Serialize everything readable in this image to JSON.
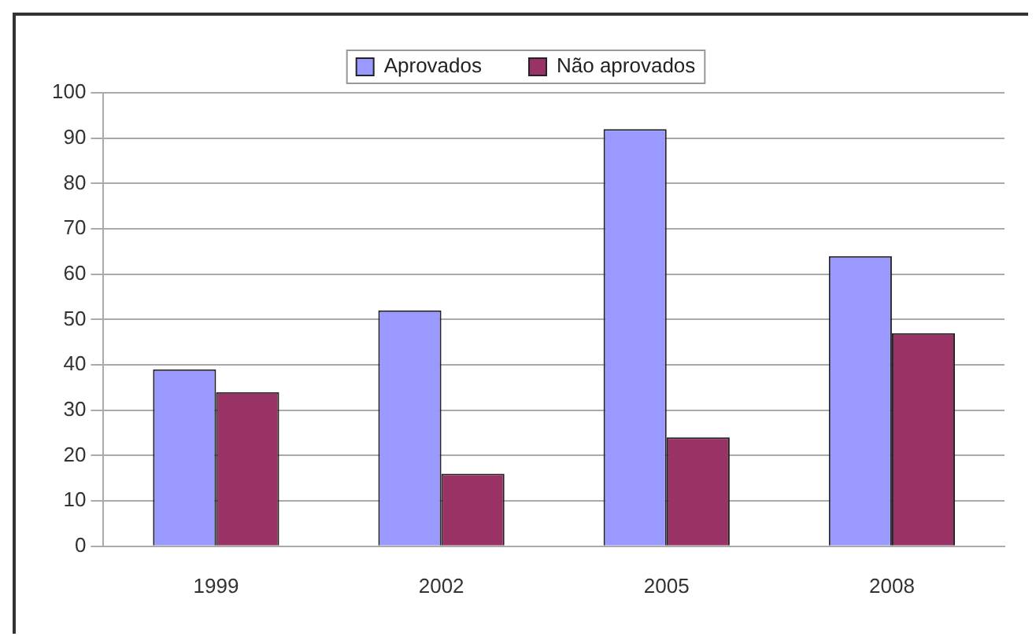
{
  "chart_data": {
    "type": "bar",
    "categories": [
      "1999",
      "2002",
      "2005",
      "2008"
    ],
    "series": [
      {
        "name": "Aprovados",
        "color": "#9999ff",
        "values": [
          39,
          52,
          92,
          64
        ]
      },
      {
        "name": "Não aprovados",
        "color": "#993366",
        "values": [
          34,
          16,
          24,
          47
        ]
      }
    ],
    "ylim": [
      0,
      100
    ],
    "yticks": [
      0,
      10,
      20,
      30,
      40,
      50,
      60,
      70,
      80,
      90,
      100
    ],
    "grid": "y",
    "legend": "top"
  }
}
